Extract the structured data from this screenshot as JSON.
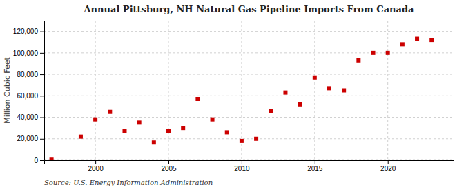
{
  "chart_data": {
    "type": "scatter",
    "title": "Annual Pittsburg, NH Natural Gas Pipeline Imports From Canada",
    "ylabel": "Million Cubic Feet",
    "source": "Source: U.S. Energy Information Administration",
    "color": "#cc0000",
    "marker": "square",
    "grid": true,
    "x": [
      1997,
      1999,
      2000,
      2001,
      2002,
      2003,
      2004,
      2005,
      2006,
      2007,
      2008,
      2009,
      2010,
      2011,
      2012,
      2013,
      2014,
      2015,
      2016,
      2017,
      2018,
      2019,
      2020,
      2021,
      2022,
      2023
    ],
    "values": [
      500,
      22000,
      38000,
      45000,
      27000,
      35000,
      16500,
      27000,
      30000,
      57000,
      38000,
      26000,
      18000,
      20000,
      46000,
      63000,
      52000,
      77000,
      67000,
      65000,
      93000,
      100000,
      100000,
      108000,
      113000,
      112000
    ],
    "xlim": [
      1996.5,
      2024.5
    ],
    "xticks": [
      2000,
      2005,
      2010,
      2015,
      2020
    ],
    "ylim": [
      0,
      130000
    ],
    "yticks": [
      0,
      {
        "value": 20000,
        "label": "20,000"
      },
      {
        "value": 40000,
        "label": "40,000"
      },
      {
        "value": 60000,
        "label": "60,000"
      },
      {
        "value": 80000,
        "label": "80,000"
      },
      {
        "value": 100000,
        "label": "100,000"
      },
      {
        "value": 120000,
        "label": "120,000"
      }
    ]
  }
}
